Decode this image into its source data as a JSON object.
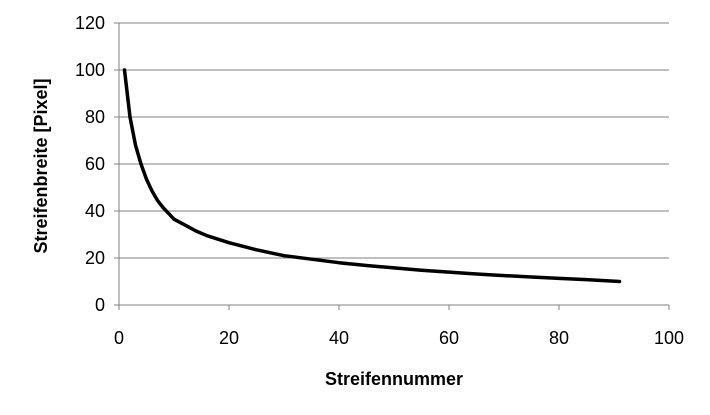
{
  "chart_data": {
    "type": "line",
    "title": "",
    "xlabel": "Streifennummer",
    "ylabel": "Streifenbreite [Pixel]",
    "xlim": [
      0,
      100
    ],
    "ylim": [
      0,
      120
    ],
    "x_ticks": [
      0,
      20,
      40,
      60,
      80,
      100
    ],
    "y_ticks": [
      0,
      20,
      40,
      60,
      80,
      100,
      120
    ],
    "grid": "horizontal",
    "legend": "none",
    "series": [
      {
        "color": "#000000",
        "x": [
          1,
          2,
          3,
          4,
          5,
          6,
          7,
          8,
          9,
          10,
          12,
          14,
          16,
          18,
          20,
          25,
          30,
          35,
          40,
          45,
          50,
          55,
          60,
          65,
          70,
          75,
          80,
          85,
          91
        ],
        "y": [
          100,
          80,
          68,
          60,
          53.5,
          48.5,
          44.5,
          41.5,
          39,
          36.5,
          34,
          31.5,
          29.5,
          28,
          26.5,
          23.5,
          21,
          19.5,
          18,
          16.8,
          15.8,
          14.8,
          14,
          13.2,
          12.5,
          11.9,
          11.3,
          10.8,
          10
        ]
      }
    ]
  }
}
